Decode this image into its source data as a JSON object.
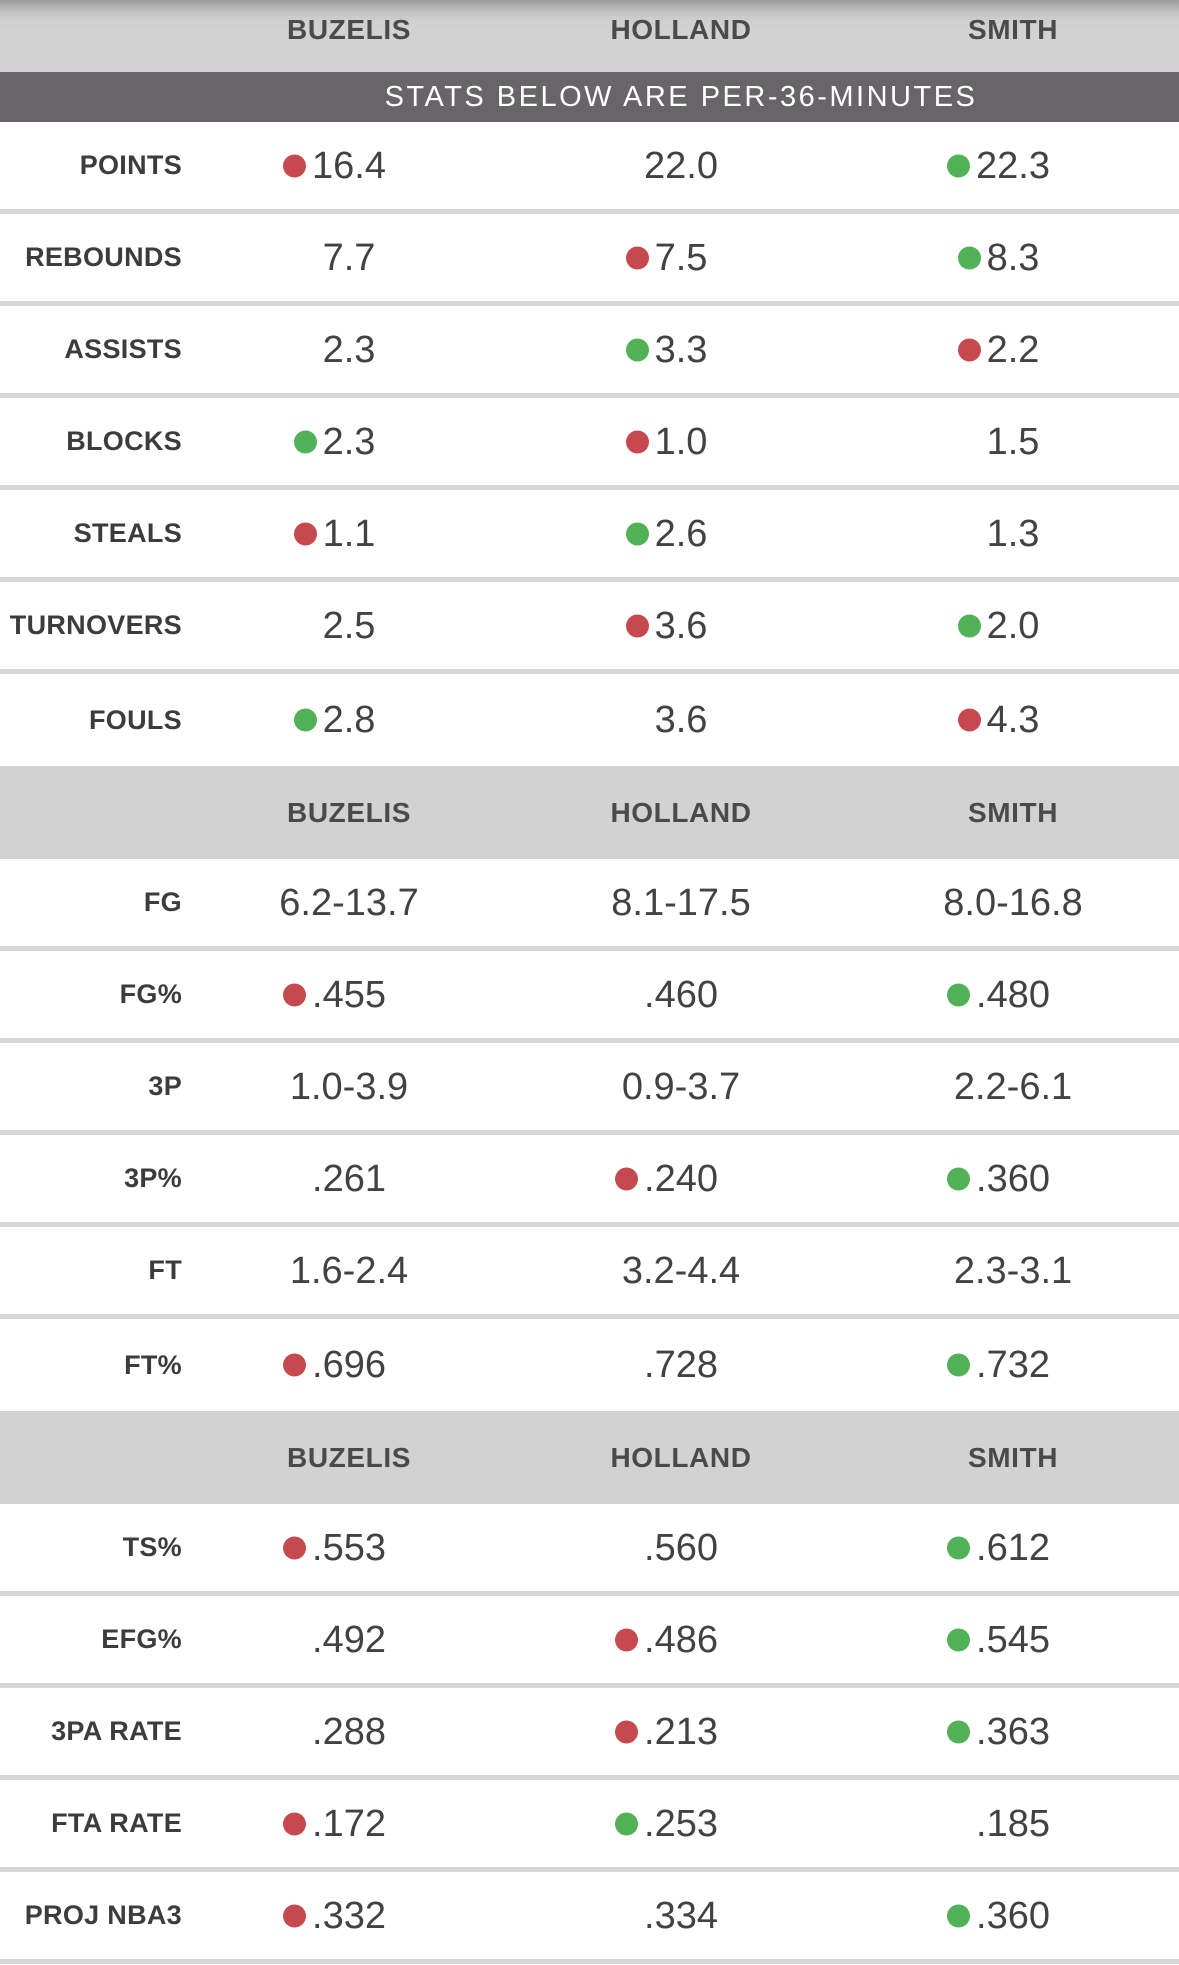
{
  "banner": {
    "text": "STATS BELOW ARE PER-36-MINUTES"
  },
  "players": [
    "BUZELIS",
    "HOLLAND",
    "SMITH"
  ],
  "colors": {
    "best": "#50b156",
    "worst": "#c6494f",
    "band_bg": "#d2d2d2",
    "banner_bg": "#676567",
    "divider": "#d7d7d7",
    "header_text": "#4a4a4a",
    "label_text": "#3c3c3c",
    "value_text": "#424242"
  },
  "sections": [
    {
      "rows": [
        {
          "label": "POINTS",
          "cells": [
            {
              "value": "16.4",
              "dot": "worst"
            },
            {
              "value": "22.0",
              "dot": null
            },
            {
              "value": "22.3",
              "dot": "best"
            }
          ]
        },
        {
          "label": "REBOUNDS",
          "cells": [
            {
              "value": "7.7",
              "dot": null
            },
            {
              "value": "7.5",
              "dot": "worst"
            },
            {
              "value": "8.3",
              "dot": "best"
            }
          ]
        },
        {
          "label": "ASSISTS",
          "cells": [
            {
              "value": "2.3",
              "dot": null
            },
            {
              "value": "3.3",
              "dot": "best"
            },
            {
              "value": "2.2",
              "dot": "worst"
            }
          ]
        },
        {
          "label": "BLOCKS",
          "cells": [
            {
              "value": "2.3",
              "dot": "best"
            },
            {
              "value": "1.0",
              "dot": "worst"
            },
            {
              "value": "1.5",
              "dot": null
            }
          ]
        },
        {
          "label": "STEALS",
          "cells": [
            {
              "value": "1.1",
              "dot": "worst"
            },
            {
              "value": "2.6",
              "dot": "best"
            },
            {
              "value": "1.3",
              "dot": null
            }
          ]
        },
        {
          "label": "TURNOVERS",
          "cells": [
            {
              "value": "2.5",
              "dot": null
            },
            {
              "value": "3.6",
              "dot": "worst"
            },
            {
              "value": "2.0",
              "dot": "best"
            }
          ]
        },
        {
          "label": "FOULS",
          "cells": [
            {
              "value": "2.8",
              "dot": "best"
            },
            {
              "value": "3.6",
              "dot": null
            },
            {
              "value": "4.3",
              "dot": "worst"
            }
          ]
        }
      ]
    },
    {
      "rows": [
        {
          "label": "FG",
          "cells": [
            {
              "value": "6.2-13.7",
              "dot": null
            },
            {
              "value": "8.1-17.5",
              "dot": null
            },
            {
              "value": "8.0-16.8",
              "dot": null
            }
          ]
        },
        {
          "label": "FG%",
          "cells": [
            {
              "value": ".455",
              "dot": "worst"
            },
            {
              "value": ".460",
              "dot": null
            },
            {
              "value": ".480",
              "dot": "best"
            }
          ]
        },
        {
          "label": "3P",
          "cells": [
            {
              "value": "1.0-3.9",
              "dot": null
            },
            {
              "value": "0.9-3.7",
              "dot": null
            },
            {
              "value": "2.2-6.1",
              "dot": null
            }
          ]
        },
        {
          "label": "3P%",
          "cells": [
            {
              "value": ".261",
              "dot": null
            },
            {
              "value": ".240",
              "dot": "worst"
            },
            {
              "value": ".360",
              "dot": "best"
            }
          ]
        },
        {
          "label": "FT",
          "cells": [
            {
              "value": "1.6-2.4",
              "dot": null
            },
            {
              "value": "3.2-4.4",
              "dot": null
            },
            {
              "value": "2.3-3.1",
              "dot": null
            }
          ]
        },
        {
          "label": "FT%",
          "cells": [
            {
              "value": ".696",
              "dot": "worst"
            },
            {
              "value": ".728",
              "dot": null
            },
            {
              "value": ".732",
              "dot": "best"
            }
          ]
        }
      ]
    },
    {
      "rows": [
        {
          "label": "TS%",
          "cells": [
            {
              "value": ".553",
              "dot": "worst"
            },
            {
              "value": ".560",
              "dot": null
            },
            {
              "value": ".612",
              "dot": "best"
            }
          ]
        },
        {
          "label": "EFG%",
          "cells": [
            {
              "value": ".492",
              "dot": null
            },
            {
              "value": ".486",
              "dot": "worst"
            },
            {
              "value": ".545",
              "dot": "best"
            }
          ]
        },
        {
          "label": "3PA RATE",
          "cells": [
            {
              "value": ".288",
              "dot": null
            },
            {
              "value": ".213",
              "dot": "worst"
            },
            {
              "value": ".363",
              "dot": "best"
            }
          ]
        },
        {
          "label": "FTA RATE",
          "cells": [
            {
              "value": ".172",
              "dot": "worst"
            },
            {
              "value": ".253",
              "dot": "best"
            },
            {
              "value": ".185",
              "dot": null
            }
          ]
        },
        {
          "label": "PROJ NBA3",
          "cells": [
            {
              "value": ".332",
              "dot": "worst"
            },
            {
              "value": ".334",
              "dot": null
            },
            {
              "value": ".360",
              "dot": "best"
            }
          ]
        }
      ]
    }
  ]
}
